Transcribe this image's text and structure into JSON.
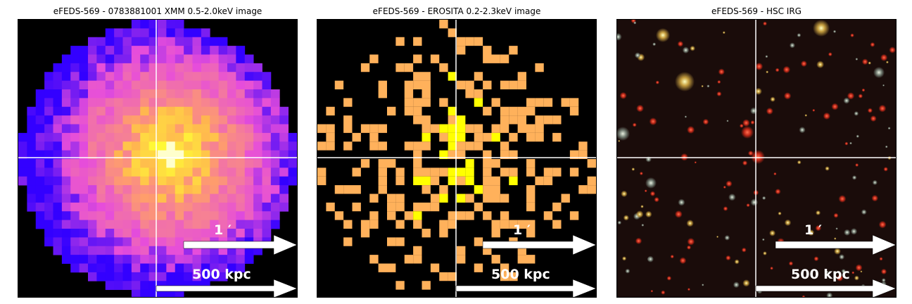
{
  "panels": [
    {
      "title": "eFEDS-569 - 0783881001 XMM 0.5-2.0keV image",
      "scale_label": "1 ′",
      "distance_label": "500 kpc",
      "image_kind": "xmm-heatmap"
    },
    {
      "title": "eFEDS-569 -  EROSITA 0.2-2.3keV image",
      "scale_label": "1 ′",
      "distance_label": "500 kpc",
      "image_kind": "erosita-pixels"
    },
    {
      "title": "eFEDS-569 - HSC IRG",
      "scale_label": "1 ′",
      "distance_label": "500 kpc",
      "image_kind": "optical-starfield"
    }
  ],
  "colors": {
    "xmm_low": "#3300ff",
    "xmm_mid": "#e64ddb",
    "xmm_high": "#ffff33",
    "erosita_low": "#ffb15b",
    "erosita_high": "#ffff00",
    "crosshair": "#ffffff",
    "arrow": "#ffffff"
  }
}
